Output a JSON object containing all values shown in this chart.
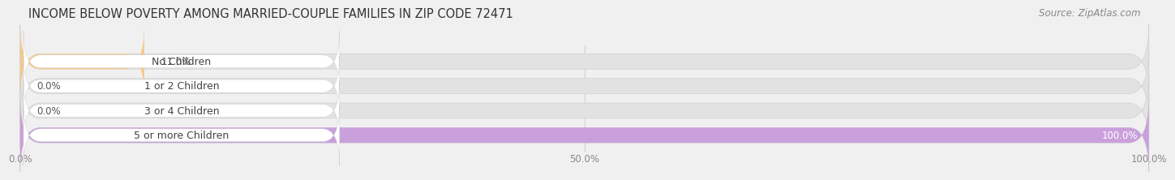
{
  "title": "INCOME BELOW POVERTY AMONG MARRIED-COUPLE FAMILIES IN ZIP CODE 72471",
  "source": "Source: ZipAtlas.com",
  "categories": [
    "No Children",
    "1 or 2 Children",
    "3 or 4 Children",
    "5 or more Children"
  ],
  "values": [
    11.0,
    0.0,
    0.0,
    100.0
  ],
  "bar_colors": [
    "#f5c98a",
    "#f0a0a0",
    "#a8c4e0",
    "#c9a0dc"
  ],
  "label_text_color": "#444444",
  "background_color": "#f0f0f0",
  "bar_bg_color": "#e2e2e2",
  "xlim": [
    0,
    100
  ],
  "xticks": [
    0.0,
    50.0,
    100.0
  ],
  "xtick_labels": [
    "0.0%",
    "50.0%",
    "100.0%"
  ],
  "title_fontsize": 10.5,
  "label_fontsize": 9.0,
  "value_fontsize": 8.5,
  "source_fontsize": 8.5,
  "tick_fontsize": 8.5,
  "bar_height": 0.62
}
